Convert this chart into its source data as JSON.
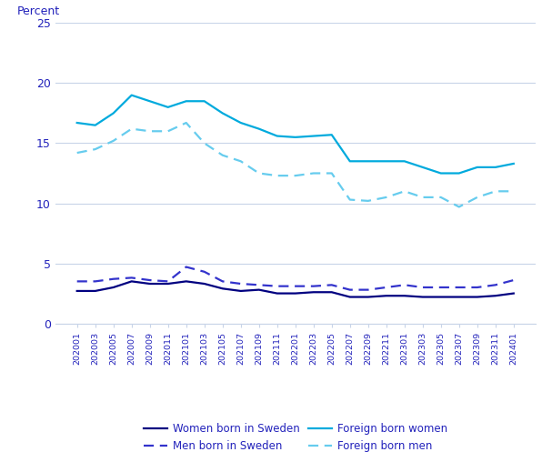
{
  "x_labels": [
    "202001",
    "202003",
    "202005",
    "202007",
    "202009",
    "202011",
    "202101",
    "202103",
    "202105",
    "202107",
    "202109",
    "202111",
    "202201",
    "202203",
    "202205",
    "202207",
    "202209",
    "202211",
    "202301",
    "202303",
    "202305",
    "202307",
    "202309",
    "202311",
    "202401"
  ],
  "foreign_born_women": [
    16.7,
    16.5,
    17.5,
    19.0,
    18.5,
    18.0,
    18.5,
    18.5,
    17.5,
    16.7,
    16.2,
    15.6,
    15.5,
    15.6,
    15.7,
    13.5,
    13.5,
    13.5,
    13.5,
    13.0,
    12.5,
    12.5,
    13.0,
    13.0,
    13.3
  ],
  "foreign_born_men": [
    14.2,
    14.5,
    15.2,
    16.2,
    16.0,
    16.0,
    16.7,
    15.0,
    14.0,
    13.5,
    12.5,
    12.3,
    12.3,
    12.5,
    12.5,
    10.3,
    10.2,
    10.5,
    11.0,
    10.5,
    10.5,
    9.7,
    10.5,
    11.0,
    11.0
  ],
  "women_born_sweden": [
    2.7,
    2.7,
    3.0,
    3.5,
    3.3,
    3.3,
    3.5,
    3.3,
    2.9,
    2.7,
    2.8,
    2.5,
    2.5,
    2.6,
    2.6,
    2.2,
    2.2,
    2.3,
    2.3,
    2.2,
    2.2,
    2.2,
    2.2,
    2.3,
    2.5
  ],
  "men_born_sweden": [
    3.5,
    3.5,
    3.7,
    3.8,
    3.6,
    3.5,
    4.7,
    4.3,
    3.5,
    3.3,
    3.2,
    3.1,
    3.1,
    3.1,
    3.2,
    2.8,
    2.8,
    3.0,
    3.2,
    3.0,
    3.0,
    3.0,
    3.0,
    3.2,
    3.6
  ],
  "ylabel": "Percent",
  "ylim": [
    0,
    25
  ],
  "yticks": [
    0,
    5,
    10,
    15,
    20,
    25
  ],
  "color_foreign_women": "#00AADD",
  "color_foreign_men": "#66CCEE",
  "color_sweden_women": "#000080",
  "color_sweden_men": "#3333CC",
  "legend_entries": [
    "Women born in Sweden",
    "Men born in Sweden",
    "Foreign born women",
    "Foreign born men"
  ],
  "bg_color": "#FFFFFF",
  "grid_color": "#C8D4E8",
  "tick_color": "#3333AA",
  "text_color": "#2222BB"
}
